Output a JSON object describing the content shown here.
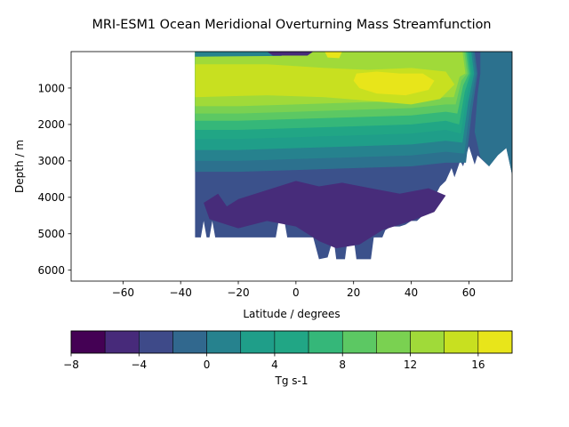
{
  "chart_data": {
    "type": "contourf",
    "title": "MRI-ESM1 Ocean Meridional Overturning Mass Streamfunction",
    "xlabel": "Latitude / degrees",
    "ylabel": "Depth / m",
    "xlim": [
      -78,
      75
    ],
    "ylim": [
      6300,
      0
    ],
    "x_ticks": [
      -60,
      -40,
      -20,
      0,
      20,
      40,
      60
    ],
    "x_tick_labels": [
      "−60",
      "−40",
      "−20",
      "0",
      "20",
      "40",
      "60"
    ],
    "y_ticks": [
      1000,
      2000,
      3000,
      4000,
      5000,
      6000
    ],
    "y_tick_labels": [
      "1000",
      "2000",
      "3000",
      "4000",
      "5000",
      "6000"
    ],
    "data_extent": {
      "lat_min": -35,
      "lat_max": 75,
      "depth_max": 5700
    },
    "colorbar": {
      "label": "Tg s-1",
      "levels": [
        -8,
        -6,
        -4,
        -2,
        0,
        2,
        4,
        6,
        8,
        10,
        12,
        14,
        16,
        18
      ],
      "tick_values": [
        -8,
        -4,
        0,
        4,
        8,
        12,
        16
      ],
      "tick_labels": [
        "−8",
        "−4",
        "0",
        "4",
        "8",
        "12",
        "16"
      ],
      "colors": [
        "#440154",
        "#472c7a",
        "#3b518b",
        "#2c718e",
        "#21908d",
        "#27ad81",
        "#5cc863",
        "#aadc32",
        "#fde725",
        "#31688e",
        "#26828e",
        "#1f9e89",
        "#35b779"
      ]
    },
    "bands": [
      {
        "level": "-4 to -2",
        "color": "#3b518b"
      },
      {
        "level": "-6 to -4",
        "color": "#472c7a"
      },
      {
        "level": "-2 to 0",
        "color": "#2c718e"
      },
      {
        "level": "0 to 2",
        "color": "#26828e"
      },
      {
        "level": "2 to 4",
        "color": "#1f9e89"
      },
      {
        "level": "4 to 6",
        "color": "#21a685"
      },
      {
        "level": "6 to 8",
        "color": "#35b779"
      },
      {
        "level": "8 to 10",
        "color": "#5cc863"
      },
      {
        "level": "10 to 12",
        "color": "#7ad151"
      },
      {
        "level": "12 to 14",
        "color": "#a0da39"
      },
      {
        "level": "14 to 16",
        "color": "#c8e020"
      },
      {
        "level": "16 to 18",
        "color": "#e8e51a"
      }
    ]
  }
}
